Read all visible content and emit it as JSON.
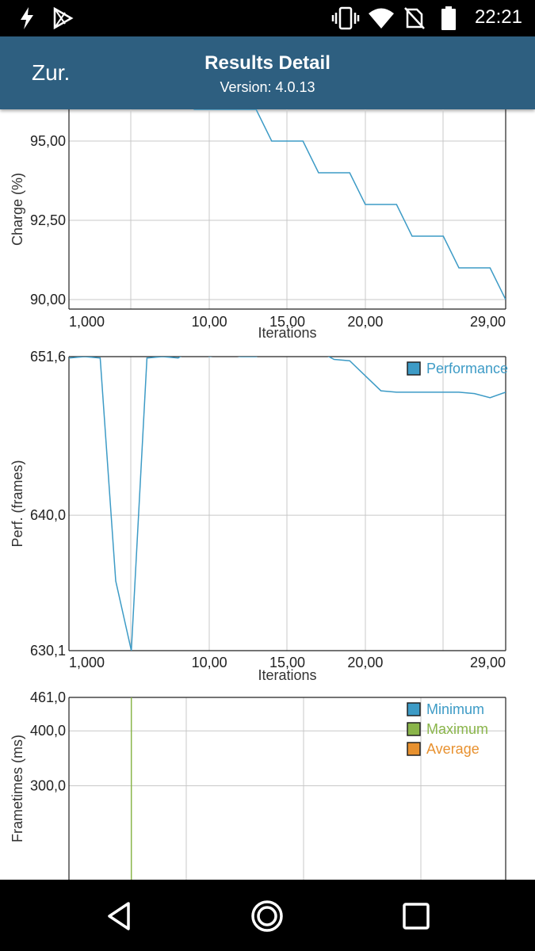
{
  "status_bar": {
    "time": "22:21",
    "icons": [
      "flash-icon",
      "play-store-icon",
      "vibrate-icon",
      "wifi-icon",
      "no-sim-icon",
      "battery-icon"
    ]
  },
  "app_bar": {
    "back_label": "Zur.",
    "title": "Results Detail",
    "subtitle": "Version: 4.0.13",
    "background": "#2e5f80"
  },
  "nav_bar": {
    "icons": [
      "back-triangle-icon",
      "home-circle-icon",
      "recents-square-icon"
    ]
  },
  "chart_data": [
    {
      "type": "line",
      "xlabel": "Iterations",
      "ylabel": "Charge (%)",
      "x_tick_labels": [
        "1,000",
        "10,00",
        "15,00",
        "20,00",
        "29,00"
      ],
      "y_tick_labels": [
        "95,00",
        "92,50",
        "90,00"
      ],
      "xlim": [
        1,
        29
      ],
      "ylim": [
        89.7,
        96.0
      ],
      "grid": true,
      "series": [
        {
          "color": "#3d9bc6",
          "x": [
            9,
            10,
            13,
            14,
            16,
            17,
            19,
            20,
            22,
            23,
            25,
            26,
            28,
            29
          ],
          "y": [
            96,
            96,
            96,
            95,
            95,
            94,
            94,
            93,
            93,
            92,
            92,
            91,
            91,
            90
          ]
        }
      ]
    },
    {
      "type": "line",
      "xlabel": "Iterations",
      "ylabel": "Perf. (frames)",
      "x_tick_labels": [
        "1,000",
        "10,00",
        "15,00",
        "20,00",
        "29,00"
      ],
      "y_tick_labels": [
        "651,6",
        "640,0",
        "630,1"
      ],
      "xlim": [
        1,
        29
      ],
      "ylim": [
        630.1,
        651.6
      ],
      "legend": "top-right",
      "grid": true,
      "series": [
        {
          "name": "Performance",
          "color": "#3d9bc6",
          "x": [
            1,
            2,
            3,
            4,
            5,
            6,
            7,
            8,
            9,
            10,
            11,
            12,
            13,
            14,
            15,
            16,
            17,
            18,
            19,
            20,
            21,
            22,
            23,
            24,
            25,
            26,
            27,
            28,
            29
          ],
          "y": [
            651.5,
            651.6,
            651.5,
            635.2,
            630.1,
            651.5,
            651.6,
            651.5,
            652.2,
            651.6,
            651.8,
            651.6,
            651.6,
            652.1,
            651.8,
            651.8,
            652.0,
            651.4,
            651.3,
            650.2,
            649.1,
            649.0,
            649.0,
            649.0,
            649.0,
            649.0,
            648.9,
            648.6,
            649.0
          ]
        }
      ]
    },
    {
      "type": "line",
      "ylabel": "Frametimes (ms)",
      "y_tick_labels": [
        "461,0",
        "400,0",
        "300,0"
      ],
      "ylim": [
        100,
        461.0
      ],
      "legend": "top-right",
      "grid": true,
      "series": [
        {
          "name": "Minimum",
          "color": "#3d9bc6"
        },
        {
          "name": "Maximum",
          "color": "#8ab54a",
          "x": [
            5,
            5
          ],
          "y": [
            100,
            461
          ]
        },
        {
          "name": "Average",
          "color": "#e8912f"
        }
      ]
    }
  ]
}
